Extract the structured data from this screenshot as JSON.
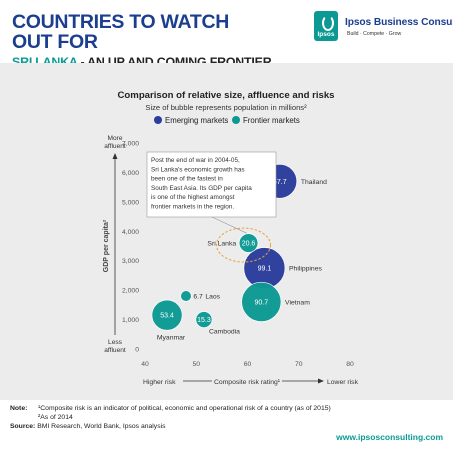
{
  "header": {
    "title_line1": "COUNTRIES TO WATCH OUT FOR",
    "title_line2_highlight": "SRI LANKA",
    "title_line2_rest": " - AN UP AND COMING FRONTIER MARKET"
  },
  "brand": {
    "logo_text": "Ipsos",
    "name": "Ipsos Business Consulting",
    "tagline": "Build · Compete · Grow"
  },
  "colors": {
    "emerging": "#2b3d9c",
    "frontier": "#0c9994",
    "title_blue": "#1b3e8f",
    "callout": "#e8a23a"
  },
  "chart_data": {
    "type": "scatter",
    "title": "Comparison of relative size, affluence and risks",
    "subtitle": "Size of bubble represents population in millions²",
    "xlabel": "Composite risk rating¹",
    "ylabel": "GDP per capita²",
    "xlim": [
      40,
      80
    ],
    "ylim": [
      0,
      7000
    ],
    "x_ticks": [
      40,
      50,
      60,
      70,
      80
    ],
    "y_ticks": [
      0,
      1000,
      2000,
      3000,
      4000,
      5000,
      6000,
      7000
    ],
    "y_tick_labels": [
      "0",
      "1,000",
      "2,000",
      "3,000",
      "4,000",
      "5,000",
      "6,000",
      "7,000"
    ],
    "x_left_label": "Higher risk",
    "x_right_label": "Lower risk",
    "y_top_label_line1": "More",
    "y_top_label_line2": "affluent",
    "y_bottom_label_line1": "Less",
    "y_bottom_label_line2": "affluent",
    "legend": [
      {
        "name": "Emerging markets",
        "color_key": "emerging"
      },
      {
        "name": "Frontier markets",
        "color_key": "frontier"
      }
    ],
    "legend_position": "top-center",
    "grid": false,
    "points": [
      {
        "country": "Thailand",
        "x": 66.3,
        "y": 5700,
        "population": 67.7,
        "value_label": "67.7",
        "group": "emerging",
        "label_side": "right"
      },
      {
        "country": "Philippines",
        "x": 63.3,
        "y": 2750,
        "population": 99.1,
        "value_label": "99.1",
        "group": "emerging",
        "label_side": "right"
      },
      {
        "country": "Vietnam",
        "x": 62.7,
        "y": 1600,
        "population": 90.7,
        "value_label": "90.7",
        "group": "frontier",
        "label_side": "right"
      },
      {
        "country": "Sri Lanka",
        "x": 60.2,
        "y": 3600,
        "population": 20.6,
        "value_label": "20.6",
        "group": "frontier",
        "label_side": "left"
      },
      {
        "country": "Laos",
        "x": 48.0,
        "y": 1800,
        "population": 6.7,
        "value_label": "6.7",
        "group": "frontier",
        "label_side": "right"
      },
      {
        "country": "Cambodia",
        "x": 51.5,
        "y": 1000,
        "population": 15.3,
        "value_label": "15.3",
        "group": "frontier",
        "label_side": "below-right"
      },
      {
        "country": "Myanmar",
        "x": 44.3,
        "y": 1150,
        "population": 53.4,
        "value_label": "53.4",
        "group": "frontier",
        "label_side": "below"
      }
    ],
    "annotation": {
      "lines": [
        "Post the end of war in 2004-05,",
        "Sri Lanka's economic growth has",
        "been one of the fastest in",
        "South East Asia. Its GDP per capita",
        "is one of the highest amongst",
        "frontier markets in the region."
      ],
      "target": "Sri Lanka"
    }
  },
  "notes": {
    "label": "Note:",
    "line1": "¹Composite risk is an indicator of political, economic and operational risk of a country (as of 2015)",
    "line2": "²As of 2014",
    "source_label": "Source:",
    "source_text": " BMI Research, World Bank, Ipsos analysis"
  },
  "website": "www.ipsosconsulting.com"
}
